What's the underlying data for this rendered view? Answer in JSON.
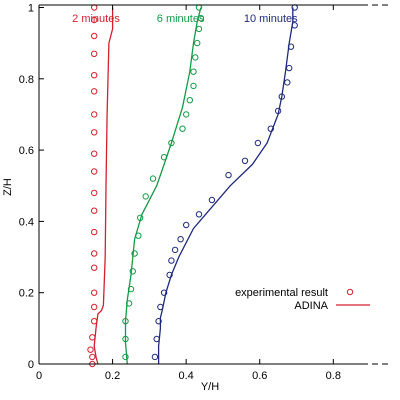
{
  "chart_data": {
    "type": "line",
    "title": "",
    "xlabel": "Y/H",
    "ylabel": "Z/H",
    "xlim": [
      0,
      0.878
    ],
    "ylim": [
      0,
      1.007
    ],
    "xticks": [
      "0",
      "0.2",
      "0.4",
      "0.6",
      "0.8"
    ],
    "xtick_values": [
      0,
      0.2,
      0.4,
      0.6,
      0.8
    ],
    "yticks": [
      "0",
      "0.2",
      "0.4",
      "0.6",
      "0.8",
      "1"
    ],
    "ytick_values": [
      0,
      0.2,
      0.4,
      0.6,
      0.8,
      1
    ],
    "grid": false,
    "legend": {
      "position": "lower-right",
      "marker_label": "experimental result",
      "line_label": "ADINA"
    },
    "series": [
      {
        "name": "2 minutes",
        "color": "#d2202f",
        "line": [
          [
            0.16,
            0.0
          ],
          [
            0.155,
            0.02
          ],
          [
            0.15,
            0.05
          ],
          [
            0.155,
            0.1
          ],
          [
            0.16,
            0.14
          ],
          [
            0.17,
            0.15
          ],
          [
            0.175,
            0.165
          ],
          [
            0.18,
            0.3
          ],
          [
            0.182,
            0.5
          ],
          [
            0.185,
            0.7
          ],
          [
            0.19,
            0.9
          ],
          [
            0.2,
            0.94
          ],
          [
            0.2,
            1.0
          ]
        ],
        "experimental": [
          [
            0.145,
            0.0
          ],
          [
            0.145,
            0.02
          ],
          [
            0.14,
            0.04
          ],
          [
            0.145,
            0.075
          ],
          [
            0.15,
            0.12
          ],
          [
            0.15,
            0.16
          ],
          [
            0.15,
            0.2
          ],
          [
            0.15,
            0.27
          ],
          [
            0.15,
            0.31
          ],
          [
            0.15,
            0.37
          ],
          [
            0.15,
            0.43
          ],
          [
            0.15,
            0.48
          ],
          [
            0.15,
            0.54
          ],
          [
            0.15,
            0.59
          ],
          [
            0.15,
            0.65
          ],
          [
            0.15,
            0.7
          ],
          [
            0.15,
            0.765
          ],
          [
            0.15,
            0.81
          ],
          [
            0.15,
            0.87
          ],
          [
            0.15,
            0.92
          ],
          [
            0.15,
            0.965
          ],
          [
            0.15,
            1.0
          ]
        ]
      },
      {
        "name": "6 minutes",
        "color": "#159a48",
        "line": [
          [
            0.24,
            0.0
          ],
          [
            0.235,
            0.06
          ],
          [
            0.235,
            0.12
          ],
          [
            0.24,
            0.18
          ],
          [
            0.25,
            0.25
          ],
          [
            0.26,
            0.35
          ],
          [
            0.28,
            0.42
          ],
          [
            0.32,
            0.5
          ],
          [
            0.34,
            0.56
          ],
          [
            0.36,
            0.62
          ],
          [
            0.39,
            0.72
          ],
          [
            0.41,
            0.82
          ],
          [
            0.42,
            0.9
          ],
          [
            0.43,
            0.96
          ],
          [
            0.44,
            1.0
          ]
        ],
        "experimental": [
          [
            0.235,
            0.02
          ],
          [
            0.235,
            0.07
          ],
          [
            0.235,
            0.12
          ],
          [
            0.245,
            0.17
          ],
          [
            0.25,
            0.21
          ],
          [
            0.255,
            0.26
          ],
          [
            0.26,
            0.31
          ],
          [
            0.27,
            0.36
          ],
          [
            0.275,
            0.41
          ],
          [
            0.29,
            0.47
          ],
          [
            0.31,
            0.52
          ],
          [
            0.34,
            0.58
          ],
          [
            0.36,
            0.62
          ],
          [
            0.39,
            0.66
          ],
          [
            0.4,
            0.7
          ],
          [
            0.41,
            0.74
          ],
          [
            0.42,
            0.78
          ],
          [
            0.42,
            0.82
          ],
          [
            0.425,
            0.86
          ],
          [
            0.43,
            0.9
          ],
          [
            0.435,
            0.94
          ],
          [
            0.44,
            0.97
          ],
          [
            0.435,
            1.0
          ]
        ]
      },
      {
        "name": "10 minutes",
        "color": "#1f2a7a",
        "line": [
          [
            0.325,
            0.0
          ],
          [
            0.325,
            0.05
          ],
          [
            0.33,
            0.1
          ],
          [
            0.33,
            0.13
          ],
          [
            0.335,
            0.15
          ],
          [
            0.345,
            0.2
          ],
          [
            0.36,
            0.25
          ],
          [
            0.38,
            0.3
          ],
          [
            0.42,
            0.38
          ],
          [
            0.47,
            0.44
          ],
          [
            0.52,
            0.5
          ],
          [
            0.58,
            0.56
          ],
          [
            0.62,
            0.62
          ],
          [
            0.65,
            0.7
          ],
          [
            0.66,
            0.75
          ],
          [
            0.67,
            0.82
          ],
          [
            0.68,
            0.9
          ],
          [
            0.69,
            0.96
          ],
          [
            0.69,
            1.0
          ]
        ],
        "experimental": [
          [
            0.315,
            0.02
          ],
          [
            0.32,
            0.07
          ],
          [
            0.325,
            0.12
          ],
          [
            0.33,
            0.16
          ],
          [
            0.34,
            0.2
          ],
          [
            0.355,
            0.25
          ],
          [
            0.36,
            0.29
          ],
          [
            0.37,
            0.32
          ],
          [
            0.385,
            0.35
          ],
          [
            0.4,
            0.39
          ],
          [
            0.435,
            0.42
          ],
          [
            0.47,
            0.46
          ],
          [
            0.515,
            0.53
          ],
          [
            0.56,
            0.57
          ],
          [
            0.595,
            0.62
          ],
          [
            0.63,
            0.66
          ],
          [
            0.65,
            0.71
          ],
          [
            0.66,
            0.75
          ],
          [
            0.675,
            0.79
          ],
          [
            0.68,
            0.83
          ],
          [
            0.685,
            0.89
          ],
          [
            0.695,
            0.95
          ],
          [
            0.695,
            1.0
          ]
        ]
      }
    ]
  }
}
